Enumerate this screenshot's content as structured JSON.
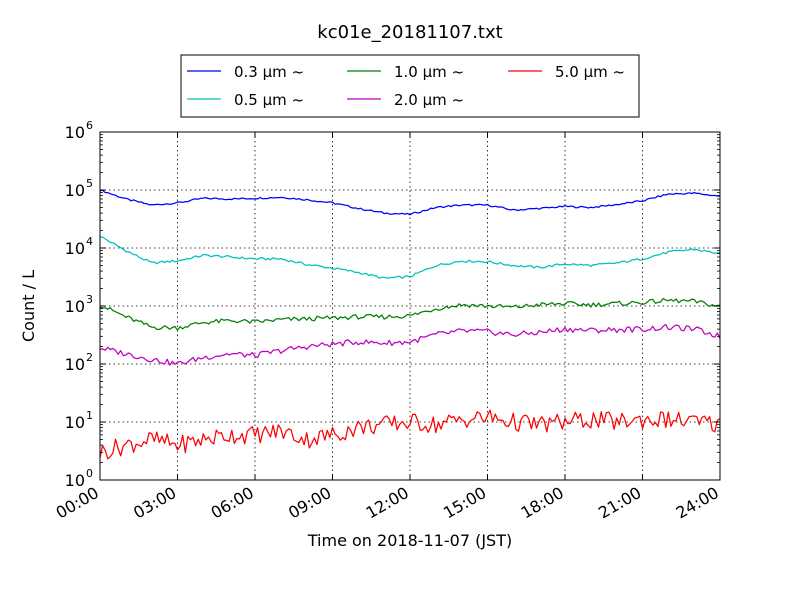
{
  "chart_data": {
    "type": "line",
    "title": "kc01e_20181107.txt",
    "xlabel": "Time on 2018-11-07 (JST)",
    "ylabel": "Count / L",
    "yscale": "log",
    "ylim": [
      1,
      1000000
    ],
    "xlim": [
      "00:00",
      "24:00"
    ],
    "grid": true,
    "legend_position": "top-center",
    "x_ticks": [
      "00:00",
      "03:00",
      "06:00",
      "09:00",
      "12:00",
      "15:00",
      "18:00",
      "21:00",
      "24:00"
    ],
    "y_ticks": [
      {
        "base": "10",
        "exp": "0",
        "value": 1
      },
      {
        "base": "10",
        "exp": "1",
        "value": 10
      },
      {
        "base": "10",
        "exp": "2",
        "value": 100
      },
      {
        "base": "10",
        "exp": "3",
        "value": 1000
      },
      {
        "base": "10",
        "exp": "4",
        "value": 10000
      },
      {
        "base": "10",
        "exp": "5",
        "value": 100000
      },
      {
        "base": "10",
        "exp": "6",
        "value": 1000000
      }
    ],
    "x": [
      "00:00",
      "01:00",
      "02:00",
      "03:00",
      "04:00",
      "05:00",
      "06:00",
      "07:00",
      "08:00",
      "09:00",
      "10:00",
      "11:00",
      "12:00",
      "13:00",
      "14:00",
      "15:00",
      "16:00",
      "17:00",
      "18:00",
      "19:00",
      "20:00",
      "21:00",
      "22:00",
      "23:00",
      "24:00"
    ],
    "series": [
      {
        "name": "0.3 μm ~",
        "color": "#0000ff",
        "values": [
          100000,
          70000,
          55000,
          60000,
          72000,
          70000,
          72000,
          75000,
          68000,
          60000,
          48000,
          40000,
          38000,
          50000,
          55000,
          55000,
          45000,
          48000,
          52000,
          50000,
          56000,
          65000,
          85000,
          88000,
          78000
        ]
      },
      {
        "name": "0.5 μm ~",
        "color": "#00bfbf",
        "values": [
          16000,
          9000,
          5500,
          6000,
          7500,
          7000,
          6500,
          6500,
          5200,
          4500,
          3800,
          3000,
          3200,
          5000,
          6000,
          5800,
          5000,
          4600,
          5300,
          5000,
          5500,
          6500,
          8500,
          9500,
          8000
        ]
      },
      {
        "name": "1.0 μm ~",
        "color": "#008000",
        "values": [
          1050,
          650,
          430,
          420,
          520,
          560,
          530,
          580,
          600,
          620,
          650,
          650,
          680,
          900,
          1050,
          1000,
          950,
          1050,
          1100,
          1050,
          1100,
          1150,
          1250,
          1200,
          980
        ]
      },
      {
        "name": "2.0 μm ~",
        "color": "#bf00bf",
        "values": [
          190,
          150,
          120,
          100,
          130,
          150,
          140,
          170,
          200,
          220,
          240,
          230,
          240,
          320,
          370,
          360,
          320,
          350,
          400,
          380,
          390,
          400,
          430,
          400,
          300
        ]
      },
      {
        "name": "5.0 μm ~",
        "color": "#ff0000",
        "values": [
          3,
          4,
          5,
          4,
          5,
          6,
          6,
          7,
          5,
          6,
          8,
          9,
          10,
          9,
          11,
          12,
          10,
          9,
          10,
          11,
          10,
          11,
          11,
          10,
          9
        ]
      }
    ]
  }
}
